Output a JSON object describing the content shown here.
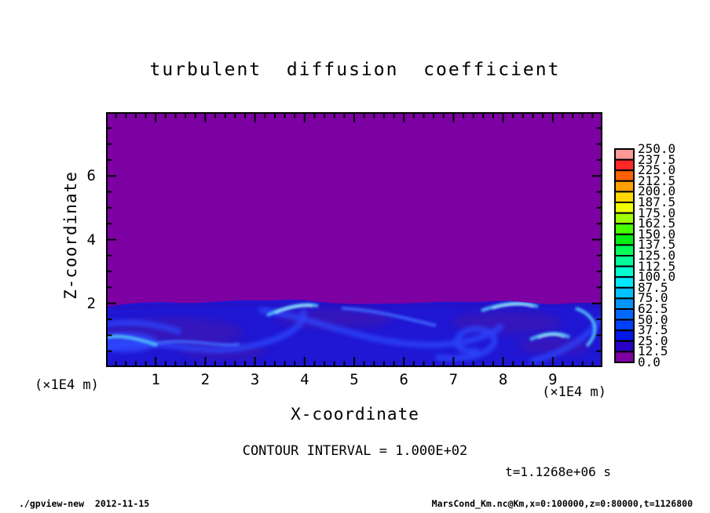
{
  "window": {
    "background": "#ffffff"
  },
  "chart_data": {
    "type": "filled_contour",
    "title": "turbulent  diffusion  coefficient",
    "xlabel": "X-coordinate",
    "ylabel": "Z-coordinate",
    "x_axis_factor": "(×1E4 m)",
    "z_axis_factor": "(×1E4 m)",
    "x_range": [
      0,
      10
    ],
    "z_range": [
      0,
      8
    ],
    "x_ticks": [
      1,
      2,
      3,
      4,
      5,
      6,
      7,
      8,
      9
    ],
    "z_ticks": [
      2,
      4,
      6
    ],
    "x_minor_step": 0.2,
    "z_minor_step": 0.5,
    "grid": false,
    "contour_interval_label": "CONTOUR INTERVAL = 1.000E+02",
    "time_label": "t=1.1268e+06 s",
    "field_colors": {
      "upper": "#7d00a2",
      "lower_base": "#1f17d4"
    },
    "field_summary": "uniform lowest band (0-12.5, purple) above z≈2×1E4 m; turbulent blue mixed layer with brighter blue swirls and cyan filaments below",
    "colorbar": {
      "position": "right",
      "levels": [
        0.0,
        12.5,
        25.0,
        37.5,
        50.0,
        62.5,
        75.0,
        87.5,
        100.0,
        112.5,
        125.0,
        137.5,
        150.0,
        162.5,
        175.0,
        187.5,
        200.0,
        212.5,
        225.0,
        237.5,
        250.0
      ],
      "colors_bottom_to_top": [
        "#7d00a2",
        "#2a00c4",
        "#0018e8",
        "#0040ff",
        "#0068ff",
        "#0094ff",
        "#00c0ff",
        "#00e8ff",
        "#00ffd0",
        "#00ff98",
        "#00ff58",
        "#00ee11",
        "#48ff00",
        "#a0ff00",
        "#f0ff00",
        "#ffd800",
        "#ffa000",
        "#ff6000",
        "#ff2828",
        "#ff9898"
      ]
    }
  },
  "footer": {
    "left": "./gpview-new  2012-11-15",
    "right": "MarsCond_Km.nc@Km,x=0:100000,z=0:80000,t=1126800"
  }
}
